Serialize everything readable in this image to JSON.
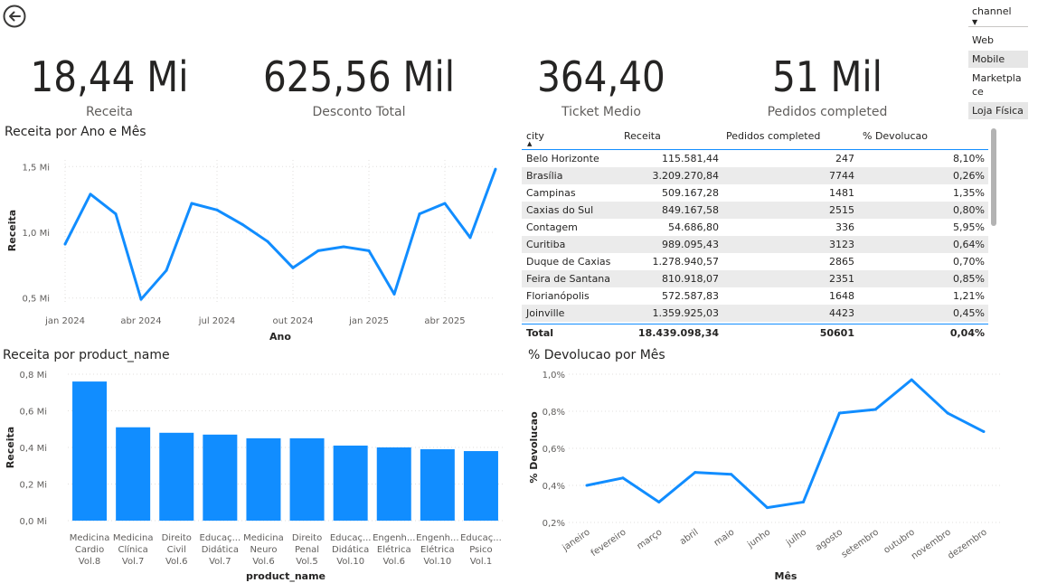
{
  "kpis": [
    {
      "value": "18,44 Mi",
      "label": "Receita"
    },
    {
      "value": "625,56 Mil",
      "label": "Desconto Total"
    },
    {
      "value": "364,40",
      "label": "Ticket Medio"
    },
    {
      "value": "51 Mil",
      "label": "Pedidos completed"
    }
  ],
  "slicer": {
    "title": "channel",
    "items": [
      "Web",
      "Mobile",
      "Marketplace",
      "Loja Física"
    ]
  },
  "table": {
    "columns": [
      "city",
      "Receita",
      "Pedidos completed",
      "% Devolucao"
    ],
    "rows": [
      [
        "Belo Horizonte",
        "115.581,44",
        "247",
        "8,10%"
      ],
      [
        "Brasília",
        "3.209.270,84",
        "7744",
        "0,26%"
      ],
      [
        "Campinas",
        "509.167,28",
        "1481",
        "1,35%"
      ],
      [
        "Caxias do Sul",
        "849.167,58",
        "2515",
        "0,80%"
      ],
      [
        "Contagem",
        "54.686,80",
        "336",
        "5,95%"
      ],
      [
        "Curitiba",
        "989.095,43",
        "3123",
        "0,64%"
      ],
      [
        "Duque de Caxias",
        "1.278.940,57",
        "2865",
        "0,70%"
      ],
      [
        "Feira de Santana",
        "810.918,07",
        "2351",
        "0,85%"
      ],
      [
        "Florianópolis",
        "572.587,83",
        "1648",
        "1,21%"
      ],
      [
        "Joinville",
        "1.359.925,03",
        "4423",
        "0,45%"
      ]
    ],
    "total": [
      "Total",
      "18.439.098,34",
      "50601",
      "0,04%"
    ]
  },
  "chart_data": [
    {
      "type": "line",
      "title": "Receita por Ano e Mês",
      "xlabel": "Ano",
      "ylabel": "Receita",
      "x_ticks": [
        "jan 2024",
        "abr 2024",
        "jul 2024",
        "out 2024",
        "jan 2025",
        "abr 2025"
      ],
      "y_ticks": [
        "0,5 Mi",
        "1,0 Mi",
        "1,5 Mi"
      ],
      "ylim": [
        0.45,
        1.55
      ],
      "x": [
        "2024-01",
        "2024-02",
        "2024-03",
        "2024-04",
        "2024-05",
        "2024-06",
        "2024-07",
        "2024-08",
        "2024-09",
        "2024-10",
        "2024-11",
        "2024-12",
        "2025-01",
        "2025-02",
        "2025-03",
        "2025-04",
        "2025-05",
        "2025-06"
      ],
      "values": [
        0.91,
        1.29,
        1.14,
        0.49,
        0.71,
        1.22,
        1.17,
        1.06,
        0.93,
        0.73,
        0.86,
        0.89,
        0.86,
        0.53,
        1.14,
        1.22,
        0.96,
        1.48
      ],
      "color": "#118dff"
    },
    {
      "type": "bar",
      "title": "Receita por product_name",
      "xlabel": "product_name",
      "ylabel": "Receita",
      "y_ticks": [
        "0,0 Mi",
        "0,2 Mi",
        "0,4 Mi",
        "0,6 Mi",
        "0,8 Mi"
      ],
      "ylim": [
        0,
        0.8
      ],
      "categories": [
        [
          "Medicina",
          "Cardio",
          "Vol.8"
        ],
        [
          "Medicina",
          "Clínica",
          "Vol.7"
        ],
        [
          "Direito",
          "Civil",
          "Vol.6"
        ],
        [
          "Educaç...",
          "Didática",
          "Vol.7"
        ],
        [
          "Medicina",
          "Neuro",
          "Vol.6"
        ],
        [
          "Direito",
          "Penal",
          "Vol.5"
        ],
        [
          "Educaç...",
          "Didática",
          "Vol.10"
        ],
        [
          "Engenh...",
          "Elétrica",
          "Vol.6"
        ],
        [
          "Engenh...",
          "Elétrica",
          "Vol.10"
        ],
        [
          "Educaç...",
          "Psico",
          "Vol.1"
        ]
      ],
      "values": [
        0.76,
        0.51,
        0.48,
        0.47,
        0.45,
        0.45,
        0.41,
        0.4,
        0.39,
        0.38
      ],
      "color": "#118dff"
    },
    {
      "type": "line",
      "title": "% Devolucao por Mês",
      "xlabel": "Mês",
      "ylabel": "% Devolucao",
      "y_ticks": [
        "0,2%",
        "0,4%",
        "0,6%",
        "0,8%",
        "1,0%"
      ],
      "ylim": [
        0.2,
        1.0
      ],
      "categories": [
        "janeiro",
        "fevereiro",
        "março",
        "abril",
        "maio",
        "junho",
        "julho",
        "agosto",
        "setembro",
        "outubro",
        "novembro",
        "dezembro"
      ],
      "values": [
        0.4,
        0.44,
        0.31,
        0.47,
        0.46,
        0.28,
        0.31,
        0.79,
        0.81,
        0.97,
        0.79,
        0.69
      ],
      "color": "#118dff"
    }
  ]
}
